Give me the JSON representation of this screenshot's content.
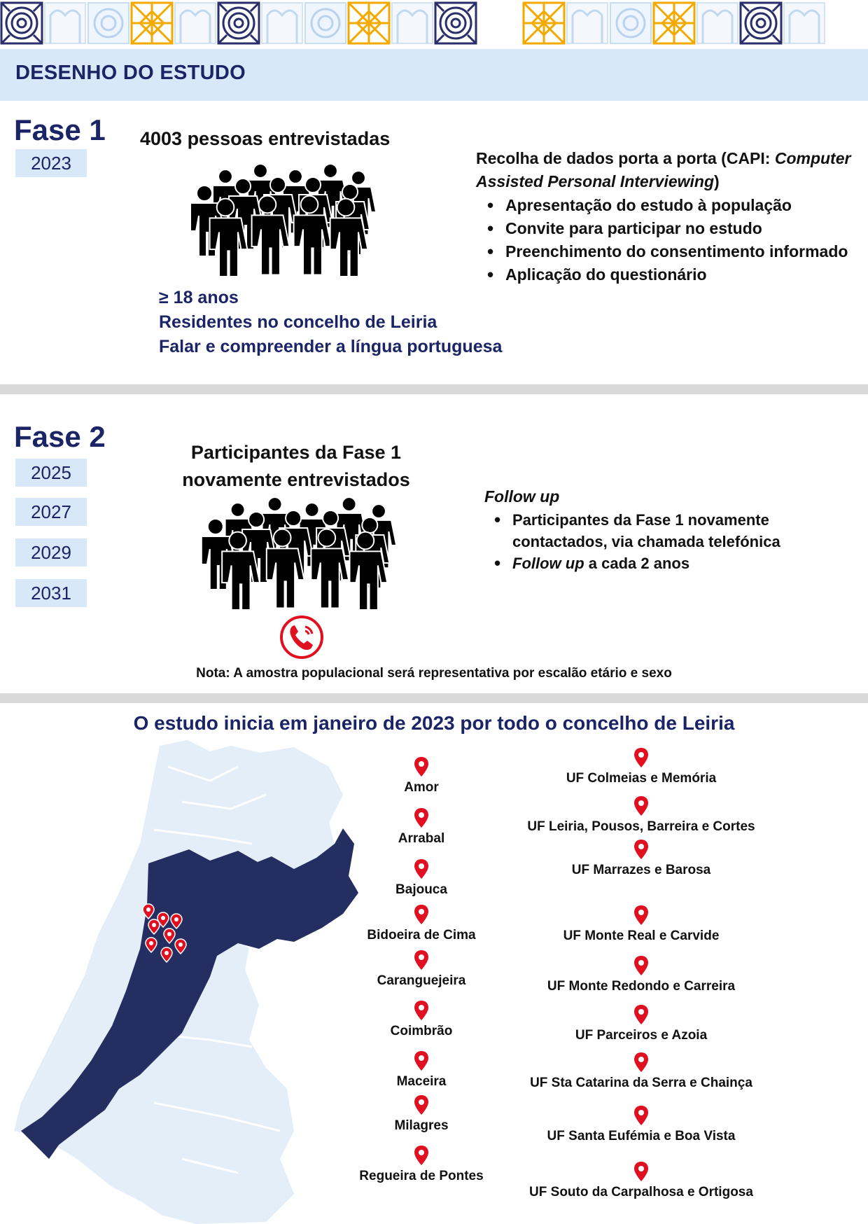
{
  "header": {
    "title": "DESENHO DO ESTUDO"
  },
  "fase1": {
    "title": "Fase 1",
    "years": [
      "2023"
    ],
    "heading": "4003 pessoas entrevistadas",
    "criteria": [
      "≥  18 anos",
      "Residentes no concelho de Leiria",
      "Falar e compreender a língua portuguesa"
    ],
    "method_title_part1": "Recolha de dados porta a porta (CAPI: ",
    "method_title_italic": "Computer Assisted Personal Interviewing",
    "method_title_part3": ")",
    "items": [
      "Apresentação do estudo à população",
      "Convite para participar no estudo",
      "Preenchimento do consentimento informado",
      "Aplicação do questionário"
    ],
    "people_icon": "crowd-icon"
  },
  "fase2": {
    "title": "Fase 2",
    "years": [
      "2025",
      "2027",
      "2029",
      "2031"
    ],
    "heading_line1": "Participantes da Fase 1",
    "heading_line2": "novamente entrevistados",
    "followup_title": "Follow up",
    "item1": "Participantes da Fase 1 novamente contactados, via chamada telefónica",
    "item2_italic": "Follow up",
    "item2_rest": " a cada 2 anos",
    "people_icon": "crowd-icon",
    "phone_icon": "phone-icon"
  },
  "nota": "Nota: A amostra populacional será representativa por escalão etário e sexo",
  "study": {
    "title": "O estudo inicia em janeiro de 2023 por todo o concelho de Leiria",
    "parishes_left": [
      "Amor",
      "Arrabal",
      "Bajouca",
      "Bidoeira de Cima",
      "Caranguejeira",
      "Coimbrão",
      "Maceira",
      "Milagres",
      "Regueira de Pontes"
    ],
    "parishes_right": [
      "UF Colmeias e Memória",
      "UF Leiria, Pousos, Barreira e Cortes",
      "UF Marrazes e Barosa",
      "UF Monte Real e Carvide",
      "UF Monte Redondo e Carreira",
      "UF Parceiros e Azoia",
      "UF Sta Catarina da Serra e Chainça",
      "UF Santa Eufémia e Boa Vista",
      "UF Souto da Carpalhosa e Ortigosa"
    ],
    "pin_icon": "map-pin-icon",
    "map_icon": "portugal-map-icon"
  },
  "colors": {
    "navy": "#1a2466",
    "light_blue": "#d8e8f8",
    "pin_red": "#e01020",
    "tile_gold": "#f2a900"
  }
}
